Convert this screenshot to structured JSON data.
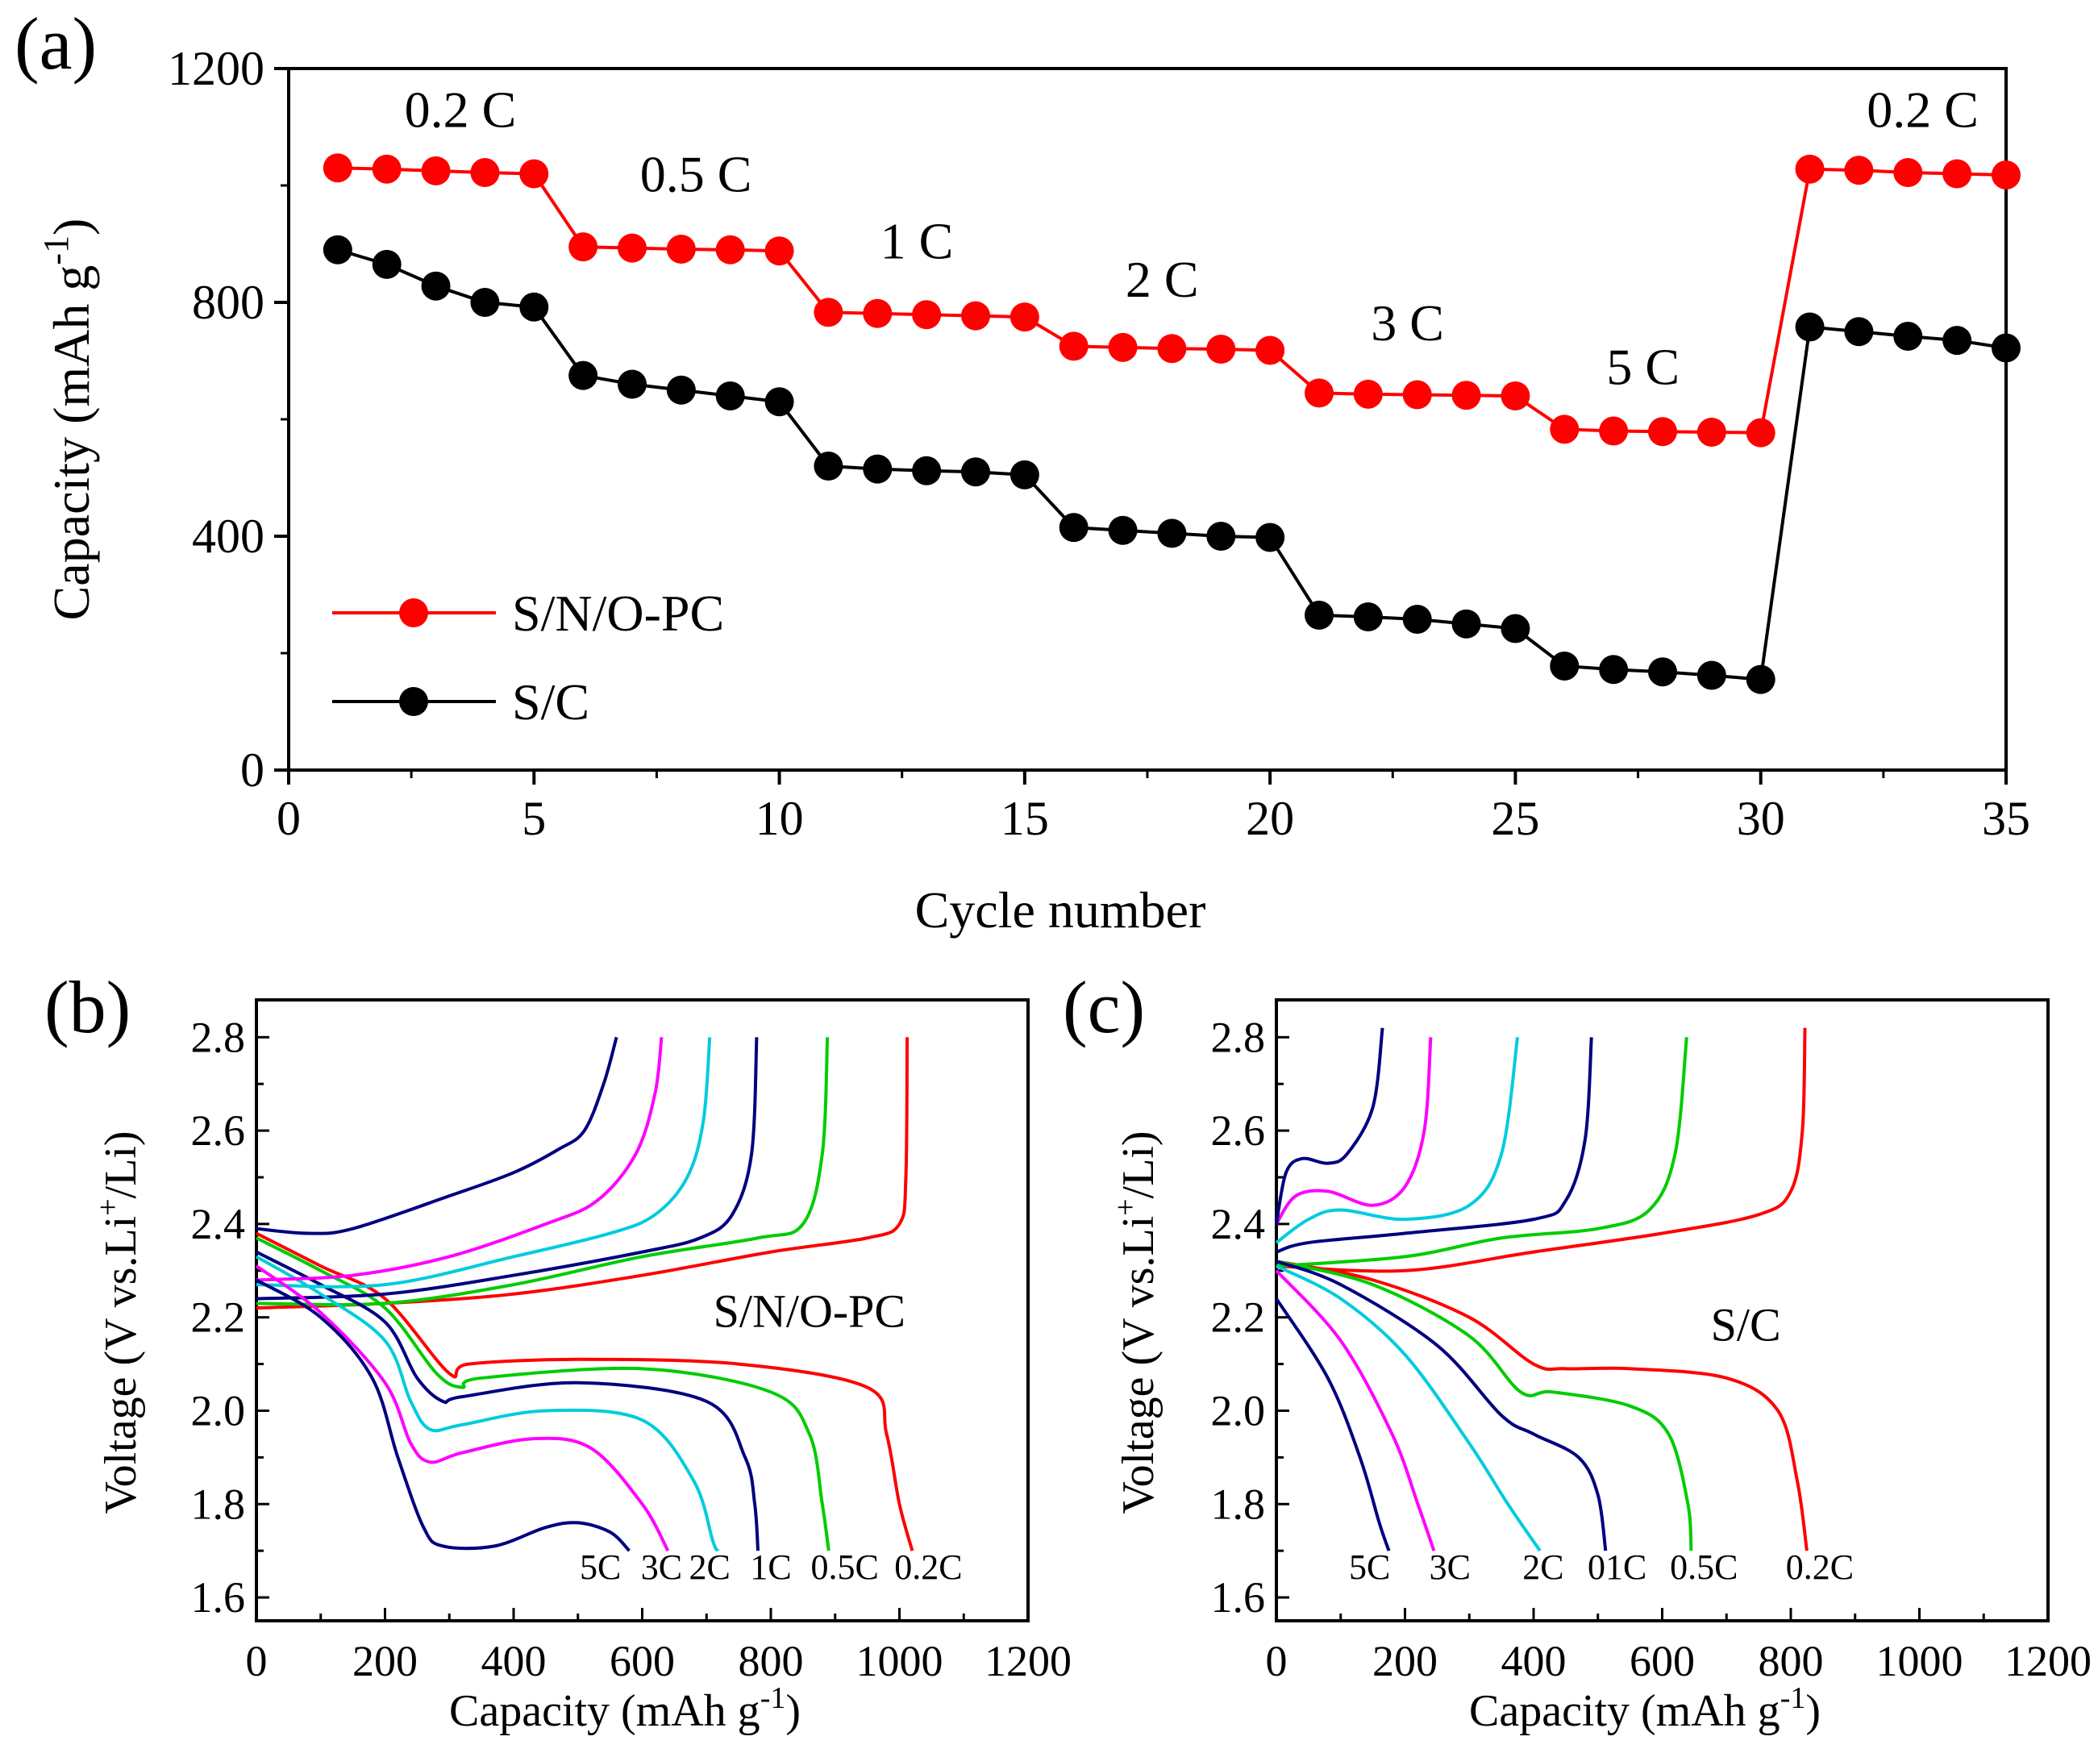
{
  "chart_data": [
    {
      "panel": "(a)",
      "type": "line",
      "xlabel": "Cycle number",
      "ylabel": "Capacity (mAh g",
      "ylabel_sup": "-1",
      "ylabel_end": ")",
      "xlim": [
        0,
        35
      ],
      "ylim": [
        0,
        1200
      ],
      "xticks": [
        "0",
        "5",
        "10",
        "15",
        "20",
        "25",
        "30",
        "35"
      ],
      "yticks": [
        "0",
        "400",
        "800",
        "1200"
      ],
      "x": [
        1,
        2,
        3,
        4,
        5,
        6,
        7,
        8,
        9,
        10,
        11,
        12,
        13,
        14,
        15,
        16,
        17,
        18,
        19,
        20,
        21,
        22,
        23,
        24,
        25,
        26,
        27,
        28,
        29,
        30,
        31,
        32,
        33,
        34,
        35
      ],
      "series": [
        {
          "name": "S/N/O-PC",
          "color": "#ff0000",
          "values": [
            1030,
            1028,
            1025,
            1022,
            1020,
            895,
            893,
            891,
            890,
            888,
            783,
            781,
            779,
            777,
            775,
            725,
            723,
            721,
            720,
            718,
            645,
            643,
            642,
            641,
            640,
            583,
            580,
            579,
            578,
            577,
            1028,
            1026,
            1022,
            1020,
            1018
          ]
        },
        {
          "name": "S/C",
          "color": "#000000",
          "values": [
            890,
            865,
            828,
            800,
            792,
            675,
            660,
            650,
            640,
            630,
            520,
            515,
            512,
            510,
            505,
            415,
            410,
            405,
            400,
            398,
            265,
            262,
            258,
            250,
            242,
            178,
            172,
            168,
            162,
            155,
            758,
            750,
            742,
            735,
            722
          ]
        }
      ],
      "rate_labels": [
        {
          "text": "0.2 C",
          "x": 3.5,
          "y": 1100
        },
        {
          "text": "0.5 C",
          "x": 8.3,
          "y": 990
        },
        {
          "text": "1 C",
          "x": 12.8,
          "y": 875
        },
        {
          "text": "2 C",
          "x": 17.8,
          "y": 810
        },
        {
          "text": "3 C",
          "x": 22.8,
          "y": 735
        },
        {
          "text": "5 C",
          "x": 27.6,
          "y": 660
        },
        {
          "text": "0.2 C",
          "x": 33.3,
          "y": 1100
        }
      ]
    },
    {
      "panel": "(b)",
      "type": "line",
      "xlabel": "Capacity (mAh g",
      "xlabel_sup": "-1",
      "xlabel_end": ")",
      "ylabel": "Voltage (V vs.Li",
      "ylabel_sup": "+",
      "ylabel_end": "/Li)",
      "xlim": [
        0,
        1200
      ],
      "ylim": [
        1.55,
        2.88
      ],
      "xticks": [
        "0",
        "200",
        "400",
        "600",
        "800",
        "1000",
        "1200"
      ],
      "yticks": [
        "1.6",
        "1.8",
        "2.0",
        "2.2",
        "2.4",
        "2.6",
        "2.8"
      ],
      "annotation": {
        "text": "S/N/O-PC",
        "x": 860,
        "y": 2.18
      },
      "series": [
        {
          "name": "0.2C",
          "color": "#ff0000",
          "label_x": 1045,
          "discharge": [
            [
              0,
              2.38
            ],
            [
              100,
              2.31
            ],
            [
              200,
              2.24
            ],
            [
              300,
              2.08
            ],
            [
              330,
              2.1
            ],
            [
              500,
              2.11
            ],
            [
              750,
              2.1
            ],
            [
              950,
              2.05
            ],
            [
              980,
              1.95
            ],
            [
              1000,
              1.8
            ],
            [
              1020,
              1.7
            ]
          ],
          "charge": [
            [
              0,
              2.22
            ],
            [
              200,
              2.23
            ],
            [
              400,
              2.25
            ],
            [
              600,
              2.29
            ],
            [
              800,
              2.34
            ],
            [
              950,
              2.37
            ],
            [
              1000,
              2.4
            ],
            [
              1010,
              2.5
            ],
            [
              1012,
              2.8
            ]
          ]
        },
        {
          "name": "0.5C",
          "color": "#00cc00",
          "label_x": 915,
          "discharge": [
            [
              0,
              2.37
            ],
            [
              100,
              2.3
            ],
            [
              200,
              2.22
            ],
            [
              280,
              2.08
            ],
            [
              320,
              2.05
            ],
            [
              350,
              2.07
            ],
            [
              600,
              2.09
            ],
            [
              800,
              2.04
            ],
            [
              860,
              1.95
            ],
            [
              880,
              1.8
            ],
            [
              890,
              1.7
            ]
          ],
          "charge": [
            [
              0,
              2.23
            ],
            [
              200,
              2.23
            ],
            [
              400,
              2.27
            ],
            [
              600,
              2.33
            ],
            [
              780,
              2.37
            ],
            [
              850,
              2.4
            ],
            [
              880,
              2.55
            ],
            [
              888,
              2.8
            ]
          ]
        },
        {
          "name": "1C",
          "color": "#000080",
          "label_x": 800,
          "discharge": [
            [
              0,
              2.34
            ],
            [
              100,
              2.27
            ],
            [
              200,
              2.19
            ],
            [
              250,
              2.07
            ],
            [
              290,
              2.02
            ],
            [
              320,
              2.03
            ],
            [
              500,
              2.06
            ],
            [
              700,
              2.02
            ],
            [
              760,
              1.9
            ],
            [
              775,
              1.8
            ],
            [
              780,
              1.7
            ]
          ],
          "charge": [
            [
              0,
              2.24
            ],
            [
              200,
              2.25
            ],
            [
              400,
              2.29
            ],
            [
              600,
              2.34
            ],
            [
              690,
              2.37
            ],
            [
              740,
              2.42
            ],
            [
              770,
              2.55
            ],
            [
              778,
              2.8
            ]
          ]
        },
        {
          "name": "2C",
          "color": "#00ccdd",
          "label_x": 705,
          "discharge": [
            [
              0,
              2.33
            ],
            [
              100,
              2.25
            ],
            [
              200,
              2.15
            ],
            [
              240,
              2.02
            ],
            [
              270,
              1.96
            ],
            [
              320,
              1.97
            ],
            [
              450,
              2.0
            ],
            [
              600,
              1.98
            ],
            [
              680,
              1.85
            ],
            [
              710,
              1.72
            ],
            [
              718,
              1.7
            ]
          ],
          "charge": [
            [
              0,
              2.27
            ],
            [
              200,
              2.27
            ],
            [
              400,
              2.33
            ],
            [
              550,
              2.38
            ],
            [
              620,
              2.42
            ],
            [
              670,
              2.5
            ],
            [
              695,
              2.62
            ],
            [
              705,
              2.8
            ]
          ]
        },
        {
          "name": "3C",
          "color": "#ff00ff",
          "label_x": 630,
          "discharge": [
            [
              0,
              2.31
            ],
            [
              100,
              2.21
            ],
            [
              200,
              2.06
            ],
            [
              240,
              1.93
            ],
            [
              270,
              1.89
            ],
            [
              320,
              1.91
            ],
            [
              430,
              1.94
            ],
            [
              520,
              1.92
            ],
            [
              600,
              1.8
            ],
            [
              640,
              1.7
            ]
          ],
          "charge": [
            [
              0,
              2.28
            ],
            [
              150,
              2.29
            ],
            [
              300,
              2.33
            ],
            [
              450,
              2.4
            ],
            [
              530,
              2.45
            ],
            [
              590,
              2.55
            ],
            [
              620,
              2.68
            ],
            [
              630,
              2.8
            ]
          ]
        },
        {
          "name": "5C",
          "color": "#000080",
          "label_x": 535,
          "discharge": [
            [
              0,
              2.28
            ],
            [
              100,
              2.2
            ],
            [
              180,
              2.07
            ],
            [
              220,
              1.9
            ],
            [
              260,
              1.75
            ],
            [
              290,
              1.71
            ],
            [
              370,
              1.71
            ],
            [
              450,
              1.75
            ],
            [
              500,
              1.76
            ],
            [
              550,
              1.74
            ],
            [
              580,
              1.7
            ]
          ],
          "charge": [
            [
              0,
              2.39
            ],
            [
              80,
              2.38
            ],
            [
              150,
              2.39
            ],
            [
              300,
              2.46
            ],
            [
              400,
              2.51
            ],
            [
              470,
              2.56
            ],
            [
              510,
              2.6
            ],
            [
              540,
              2.7
            ],
            [
              560,
              2.8
            ]
          ]
        }
      ]
    },
    {
      "panel": "(c)",
      "type": "line",
      "xlabel": "Capacity (mAh g",
      "xlabel_sup": "-1",
      "xlabel_end": ")",
      "ylabel": "Voltage (V vs.Li",
      "ylabel_sup": "+",
      "ylabel_end": "/Li)",
      "xlim": [
        0,
        1200
      ],
      "ylim": [
        1.55,
        2.88
      ],
      "xticks": [
        "0",
        "200",
        "400",
        "600",
        "800",
        "1000",
        "1200"
      ],
      "yticks": [
        "1.6",
        "1.8",
        "2.0",
        "2.2",
        "2.4",
        "2.6",
        "2.8"
      ],
      "annotation": {
        "text": "S/C",
        "x": 730,
        "y": 2.15
      },
      "series": [
        {
          "name": "0.2C",
          "color": "#ff0000",
          "label_x": 845,
          "discharge": [
            [
              0,
              2.32
            ],
            [
              150,
              2.28
            ],
            [
              300,
              2.2
            ],
            [
              400,
              2.1
            ],
            [
              450,
              2.09
            ],
            [
              550,
              2.09
            ],
            [
              700,
              2.07
            ],
            [
              780,
              2.0
            ],
            [
              810,
              1.85
            ],
            [
              825,
              1.7
            ]
          ],
          "charge": [
            [
              0,
              2.31
            ],
            [
              200,
              2.3
            ],
            [
              400,
              2.34
            ],
            [
              600,
              2.38
            ],
            [
              750,
              2.42
            ],
            [
              800,
              2.47
            ],
            [
              818,
              2.6
            ],
            [
              822,
              2.82
            ]
          ]
        },
        {
          "name": "0.5C",
          "color": "#00cc00",
          "label_x": 665,
          "discharge": [
            [
              0,
              2.32
            ],
            [
              150,
              2.27
            ],
            [
              300,
              2.16
            ],
            [
              380,
              2.04
            ],
            [
              430,
              2.04
            ],
            [
              550,
              2.01
            ],
            [
              610,
              1.95
            ],
            [
              640,
              1.8
            ],
            [
              645,
              1.7
            ]
          ],
          "charge": [
            [
              0,
              2.31
            ],
            [
              200,
              2.33
            ],
            [
              350,
              2.37
            ],
            [
              500,
              2.39
            ],
            [
              580,
              2.43
            ],
            [
              620,
              2.55
            ],
            [
              638,
              2.8
            ]
          ]
        },
        {
          "name": "01C",
          "color": "#000080",
          "label_x": 530,
          "discharge": [
            [
              0,
              2.32
            ],
            [
              100,
              2.27
            ],
            [
              250,
              2.14
            ],
            [
              350,
              1.99
            ],
            [
              400,
              1.95
            ],
            [
              470,
              1.9
            ],
            [
              500,
              1.82
            ],
            [
              512,
              1.7
            ]
          ],
          "charge": [
            [
              0,
              2.34
            ],
            [
              50,
              2.36
            ],
            [
              200,
              2.38
            ],
            [
              400,
              2.41
            ],
            [
              450,
              2.45
            ],
            [
              480,
              2.58
            ],
            [
              490,
              2.8
            ]
          ]
        },
        {
          "name": "2C",
          "color": "#00ccdd",
          "label_x": 415,
          "discharge": [
            [
              0,
              2.31
            ],
            [
              100,
              2.24
            ],
            [
              200,
              2.12
            ],
            [
              300,
              1.93
            ],
            [
              360,
              1.8
            ],
            [
              410,
              1.7
            ]
          ],
          "charge": [
            [
              0,
              2.36
            ],
            [
              50,
              2.41
            ],
            [
              100,
              2.43
            ],
            [
              200,
              2.41
            ],
            [
              300,
              2.44
            ],
            [
              350,
              2.55
            ],
            [
              375,
              2.8
            ]
          ]
        },
        {
          "name": "3C",
          "color": "#ff00ff",
          "label_x": 270,
          "discharge": [
            [
              0,
              2.3
            ],
            [
              100,
              2.15
            ],
            [
              180,
              1.95
            ],
            [
              220,
              1.8
            ],
            [
              245,
              1.7
            ]
          ],
          "charge": [
            [
              0,
              2.4
            ],
            [
              30,
              2.46
            ],
            [
              80,
              2.47
            ],
            [
              150,
              2.44
            ],
            [
              200,
              2.48
            ],
            [
              230,
              2.6
            ],
            [
              240,
              2.8
            ]
          ]
        },
        {
          "name": "5C",
          "color": "#000080",
          "label_x": 145,
          "discharge": [
            [
              0,
              2.24
            ],
            [
              80,
              2.07
            ],
            [
              130,
              1.9
            ],
            [
              160,
              1.76
            ],
            [
              175,
              1.7
            ]
          ],
          "charge": [
            [
              0,
              2.4
            ],
            [
              15,
              2.51
            ],
            [
              40,
              2.54
            ],
            [
              80,
              2.53
            ],
            [
              110,
              2.55
            ],
            [
              150,
              2.65
            ],
            [
              165,
              2.82
            ]
          ]
        }
      ]
    }
  ],
  "panel_labels": [
    "(a)",
    "(b)",
    "(c)"
  ]
}
